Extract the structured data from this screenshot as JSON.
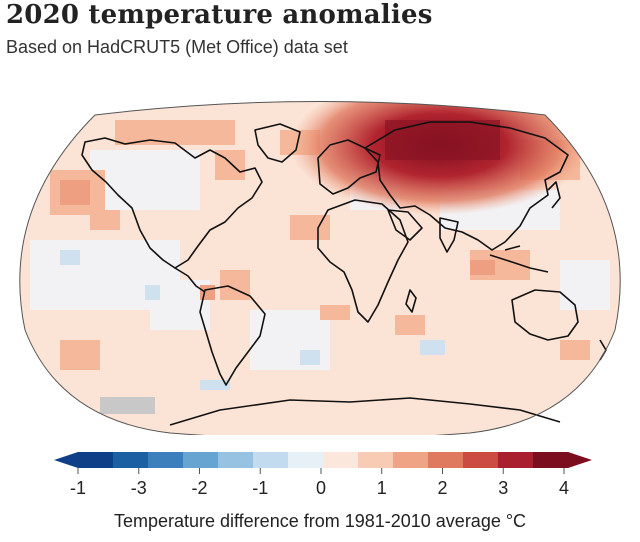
{
  "title": "2020 temperature anomalies",
  "subtitle": "Based on HadCRUT5 (Met Office) data set",
  "legend": {
    "title": "Temperature difference from 1981-2010 average °C",
    "ticks": [
      "-1",
      "-3",
      "-2",
      "-1",
      "0",
      "1",
      "2",
      "3",
      "4"
    ],
    "colors": [
      "#0e3f87",
      "#1d5fa3",
      "#3b80bd",
      "#68a4d2",
      "#97c2e2",
      "#c2dbee",
      "#e7f0f7",
      "#fbe7dc",
      "#f8cbb4",
      "#f0a486",
      "#e07a5f",
      "#cc4c43",
      "#aa1f2e",
      "#7b0d1e"
    ]
  },
  "map": {
    "no_data_color": "#c8c8c8",
    "hotspot": "Siberia"
  }
}
